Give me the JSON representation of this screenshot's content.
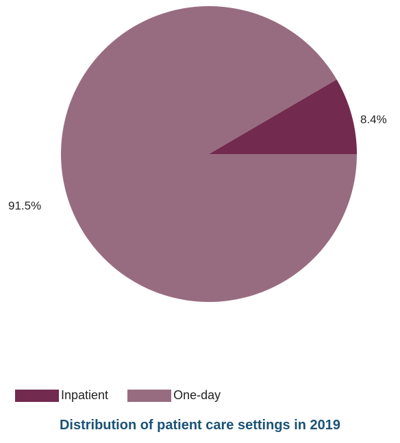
{
  "chart_data": {
    "type": "pie",
    "title": "Distribution of patient care settings in 2019",
    "slices": [
      {
        "name": "Inpatient",
        "value": 8.4,
        "label": "8.4%",
        "color": "#722a4e"
      },
      {
        "name": "One-day",
        "value": 91.5,
        "label": "91.5%",
        "color": "#986c80"
      }
    ],
    "legend_position": "bottom-left",
    "title_color": "#1a5276"
  }
}
